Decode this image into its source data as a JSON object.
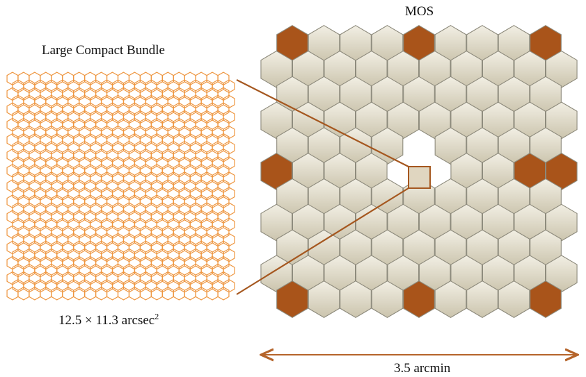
{
  "lcb": {
    "title": "Large Compact Bundle",
    "size_main": "12.5 × 11.3 arcsec",
    "size_exp": "2"
  },
  "mos": {
    "title": "MOS",
    "scale_label": "3.5 arcmin",
    "highlighted_cells": [
      [
        0,
        0
      ],
      [
        0,
        4
      ],
      [
        0,
        8
      ],
      [
        5,
        0
      ],
      [
        5,
        8
      ],
      [
        10,
        0
      ],
      [
        10,
        4
      ],
      [
        10,
        8
      ]
    ],
    "empty_cells": [
      [
        5,
        4
      ],
      [
        4,
        4
      ],
      [
        5,
        5
      ]
    ]
  },
  "colors": {
    "lcb_hex": "#ee9640",
    "mos_hex": "#dcd6c2",
    "mos_hex_edge": "#8d8a7c",
    "mos_highlight": "#a9541a",
    "zoom_box": "#e0d6c0",
    "zoom_line": "#a5571f",
    "arrow": "#b5642a"
  }
}
